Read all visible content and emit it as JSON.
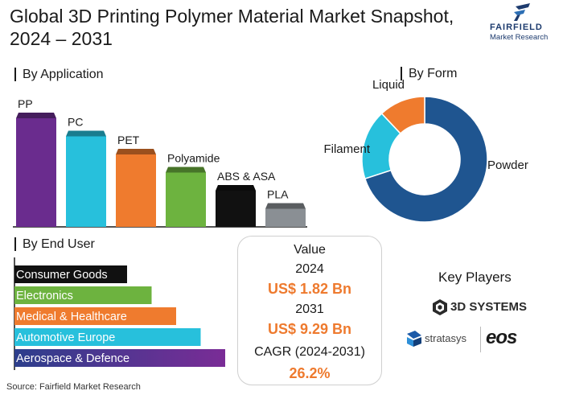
{
  "title": "Global 3D Printing Polymer Material Market Snapshot, 2024 – 2031",
  "logo": {
    "name": "FAIRFIELD",
    "sub": "Market Research",
    "icon": "fairfield-f-icon",
    "color": "#1d3b6e"
  },
  "sections": {
    "application": "By Application",
    "form": "By Form",
    "end_user": "By End User"
  },
  "chart_data": [
    {
      "type": "bar",
      "title": "By Application",
      "categories": [
        "PP",
        "PC",
        "PET",
        "Polyamide",
        "ABS & ASA",
        "PLA"
      ],
      "values": [
        6,
        5,
        4,
        3,
        2,
        1
      ],
      "colors": [
        "#6a2c8e",
        "#27c0dc",
        "#ef7b2e",
        "#6db33f",
        "#111111",
        "#8a8f94"
      ]
    },
    {
      "type": "pie",
      "title": "By Form",
      "categories": [
        "Powder",
        "Filament",
        "Liquid"
      ],
      "values": [
        70,
        18,
        12
      ],
      "colors": [
        "#1f5590",
        "#27c0dc",
        "#ef7b2e"
      ]
    },
    {
      "type": "bar",
      "title": "By End User",
      "orientation": "horizontal",
      "categories": [
        "Consumer Goods",
        "Electronics",
        "Medical & Healthcare",
        "Automotive Europe",
        "Aerospace & Defence"
      ],
      "values": [
        1,
        2,
        3,
        4,
        5
      ],
      "colors": [
        "#111111",
        "#6db33f",
        "#ef7b2e",
        "#27c0dc",
        "#2c3e8c"
      ]
    }
  ],
  "value_box": {
    "heading": "Value",
    "year1": "2024",
    "value1": "US$ 1.82 Bn",
    "year2": "2031",
    "value2": "US$ 9.29 Bn",
    "cagr_label": "CAGR (2024-2031)",
    "cagr": "26.2%",
    "accent": "#ee7a2e"
  },
  "key_players": {
    "title": "Key Players",
    "logos": [
      "3D SYSTEMS",
      "stratasys",
      "eos"
    ]
  },
  "source": "Source: Fairfield Market Research"
}
